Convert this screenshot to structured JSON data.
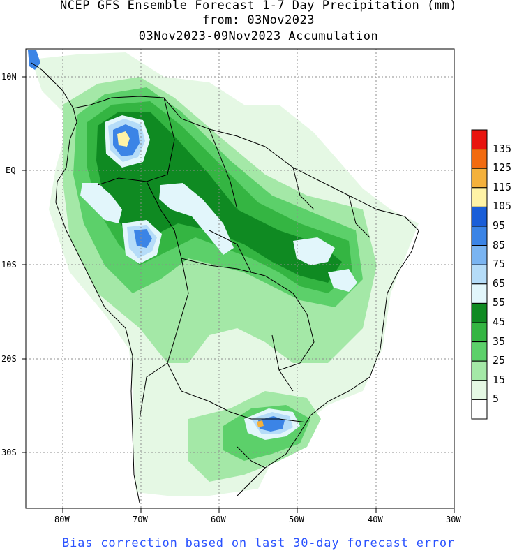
{
  "title": {
    "line1": "NCEP GFS Ensemble Forecast 1-7 Day Precipitation (mm)",
    "line2": "from: 03Nov2023",
    "line3": "03Nov2023-09Nov2023 Accumulation"
  },
  "footer": "Bias correction based on last 30-day forecast error",
  "axes": {
    "lat_labels": [
      "10N",
      "EQ",
      "10S",
      "20S",
      "30S"
    ],
    "lon_labels": [
      "80W",
      "70W",
      "60W",
      "50W",
      "40W",
      "30W"
    ]
  },
  "colorbar": {
    "labels": [
      "135",
      "125",
      "115",
      "105",
      "95",
      "85",
      "75",
      "65",
      "55",
      "45",
      "35",
      "25",
      "15",
      "5"
    ],
    "colors": [
      "#e8140f",
      "#f26b10",
      "#f4b13c",
      "#fff3a6",
      "#1a5ed8",
      "#3b84e6",
      "#7ab4f1",
      "#b5dcf8",
      "#e2f6fb",
      "#0f8a22",
      "#34b542",
      "#5cd06a",
      "#a4e8a7",
      "#e5f8e4",
      "#ffffff"
    ]
  },
  "legend_colors": {
    "light_green": "#e5f8e4",
    "mid_green": "#a4e8a7",
    "green": "#5cd06a",
    "dark_green": "#34b542",
    "deep_green": "#0f8a22",
    "cyan_light": "#e2f6fb",
    "light_blue": "#b5dcf8",
    "blue": "#3b84e6",
    "yellow": "#fff3a6"
  }
}
